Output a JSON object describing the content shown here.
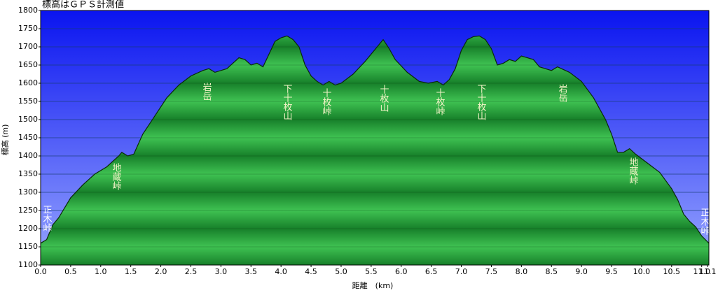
{
  "chart_data": {
    "type": "area",
    "title": "標高はＧＰＳ計測値",
    "x_label": "距離　(km)",
    "y_label": "標高 (m)",
    "x": [
      0.0,
      0.1,
      0.2,
      0.3,
      0.5,
      0.7,
      0.9,
      1.1,
      1.3,
      1.35,
      1.45,
      1.55,
      1.7,
      1.9,
      2.1,
      2.3,
      2.5,
      2.7,
      2.8,
      2.9,
      3.1,
      3.3,
      3.4,
      3.5,
      3.6,
      3.7,
      3.8,
      3.9,
      4.0,
      4.1,
      4.2,
      4.3,
      4.4,
      4.5,
      4.6,
      4.7,
      4.8,
      4.9,
      5.0,
      5.2,
      5.4,
      5.6,
      5.7,
      5.8,
      5.9,
      6.1,
      6.3,
      6.45,
      6.6,
      6.7,
      6.8,
      6.9,
      7.0,
      7.1,
      7.2,
      7.3,
      7.4,
      7.5,
      7.6,
      7.7,
      7.8,
      7.9,
      8.0,
      8.1,
      8.2,
      8.3,
      8.5,
      8.6,
      8.8,
      9.0,
      9.2,
      9.4,
      9.5,
      9.6,
      9.7,
      9.8,
      9.9,
      10.1,
      10.3,
      10.5,
      10.6,
      10.7,
      10.8,
      10.9,
      11.0,
      11.12
    ],
    "values": [
      1160,
      1170,
      1210,
      1230,
      1285,
      1320,
      1350,
      1370,
      1400,
      1410,
      1400,
      1405,
      1460,
      1510,
      1560,
      1595,
      1620,
      1635,
      1640,
      1630,
      1640,
      1670,
      1665,
      1650,
      1655,
      1645,
      1680,
      1715,
      1725,
      1730,
      1720,
      1700,
      1650,
      1620,
      1605,
      1595,
      1605,
      1595,
      1600,
      1625,
      1660,
      1700,
      1720,
      1695,
      1665,
      1630,
      1605,
      1600,
      1605,
      1595,
      1610,
      1640,
      1690,
      1720,
      1728,
      1730,
      1720,
      1695,
      1650,
      1655,
      1665,
      1660,
      1675,
      1670,
      1665,
      1645,
      1635,
      1645,
      1630,
      1605,
      1560,
      1500,
      1460,
      1410,
      1410,
      1420,
      1405,
      1380,
      1355,
      1310,
      1280,
      1240,
      1220,
      1205,
      1180,
      1160
    ],
    "xlim": [
      0,
      11.12
    ],
    "xticks": [
      {
        "value": 0,
        "label": "0.0"
      },
      0.5,
      {
        "value": 1,
        "label": "1.0"
      },
      1.5,
      {
        "value": 2,
        "label": "2.0"
      },
      2.5,
      {
        "value": 3,
        "label": "3.0"
      },
      3.5,
      {
        "value": 4,
        "label": "4.0"
      },
      4.5,
      {
        "value": 5,
        "label": "5.0"
      },
      5.5,
      {
        "value": 6,
        "label": "6.0"
      },
      6.5,
      {
        "value": 7,
        "label": "7.0"
      },
      7.5,
      {
        "value": 8,
        "label": "8.0"
      },
      8.5,
      {
        "value": 9,
        "label": "9.0"
      },
      9.5,
      {
        "value": 10,
        "label": "10.0"
      },
      10.5,
      {
        "value": 11,
        "label": "11.0"
      },
      11.1
    ],
    "ylim": [
      1100,
      1800
    ],
    "yticks": [
      1100,
      1150,
      1200,
      1250,
      1300,
      1350,
      1400,
      1450,
      1500,
      1550,
      1600,
      1650,
      1700,
      1750,
      1800
    ],
    "grid": true,
    "annotations": [
      "正木峠",
      "地蔵峠",
      "岩岳",
      "下十枚山",
      "十枚峠",
      "十枚山",
      "十枚峠",
      "下十枚山",
      "岩岳",
      "地蔵峠",
      "正木峠"
    ]
  }
}
